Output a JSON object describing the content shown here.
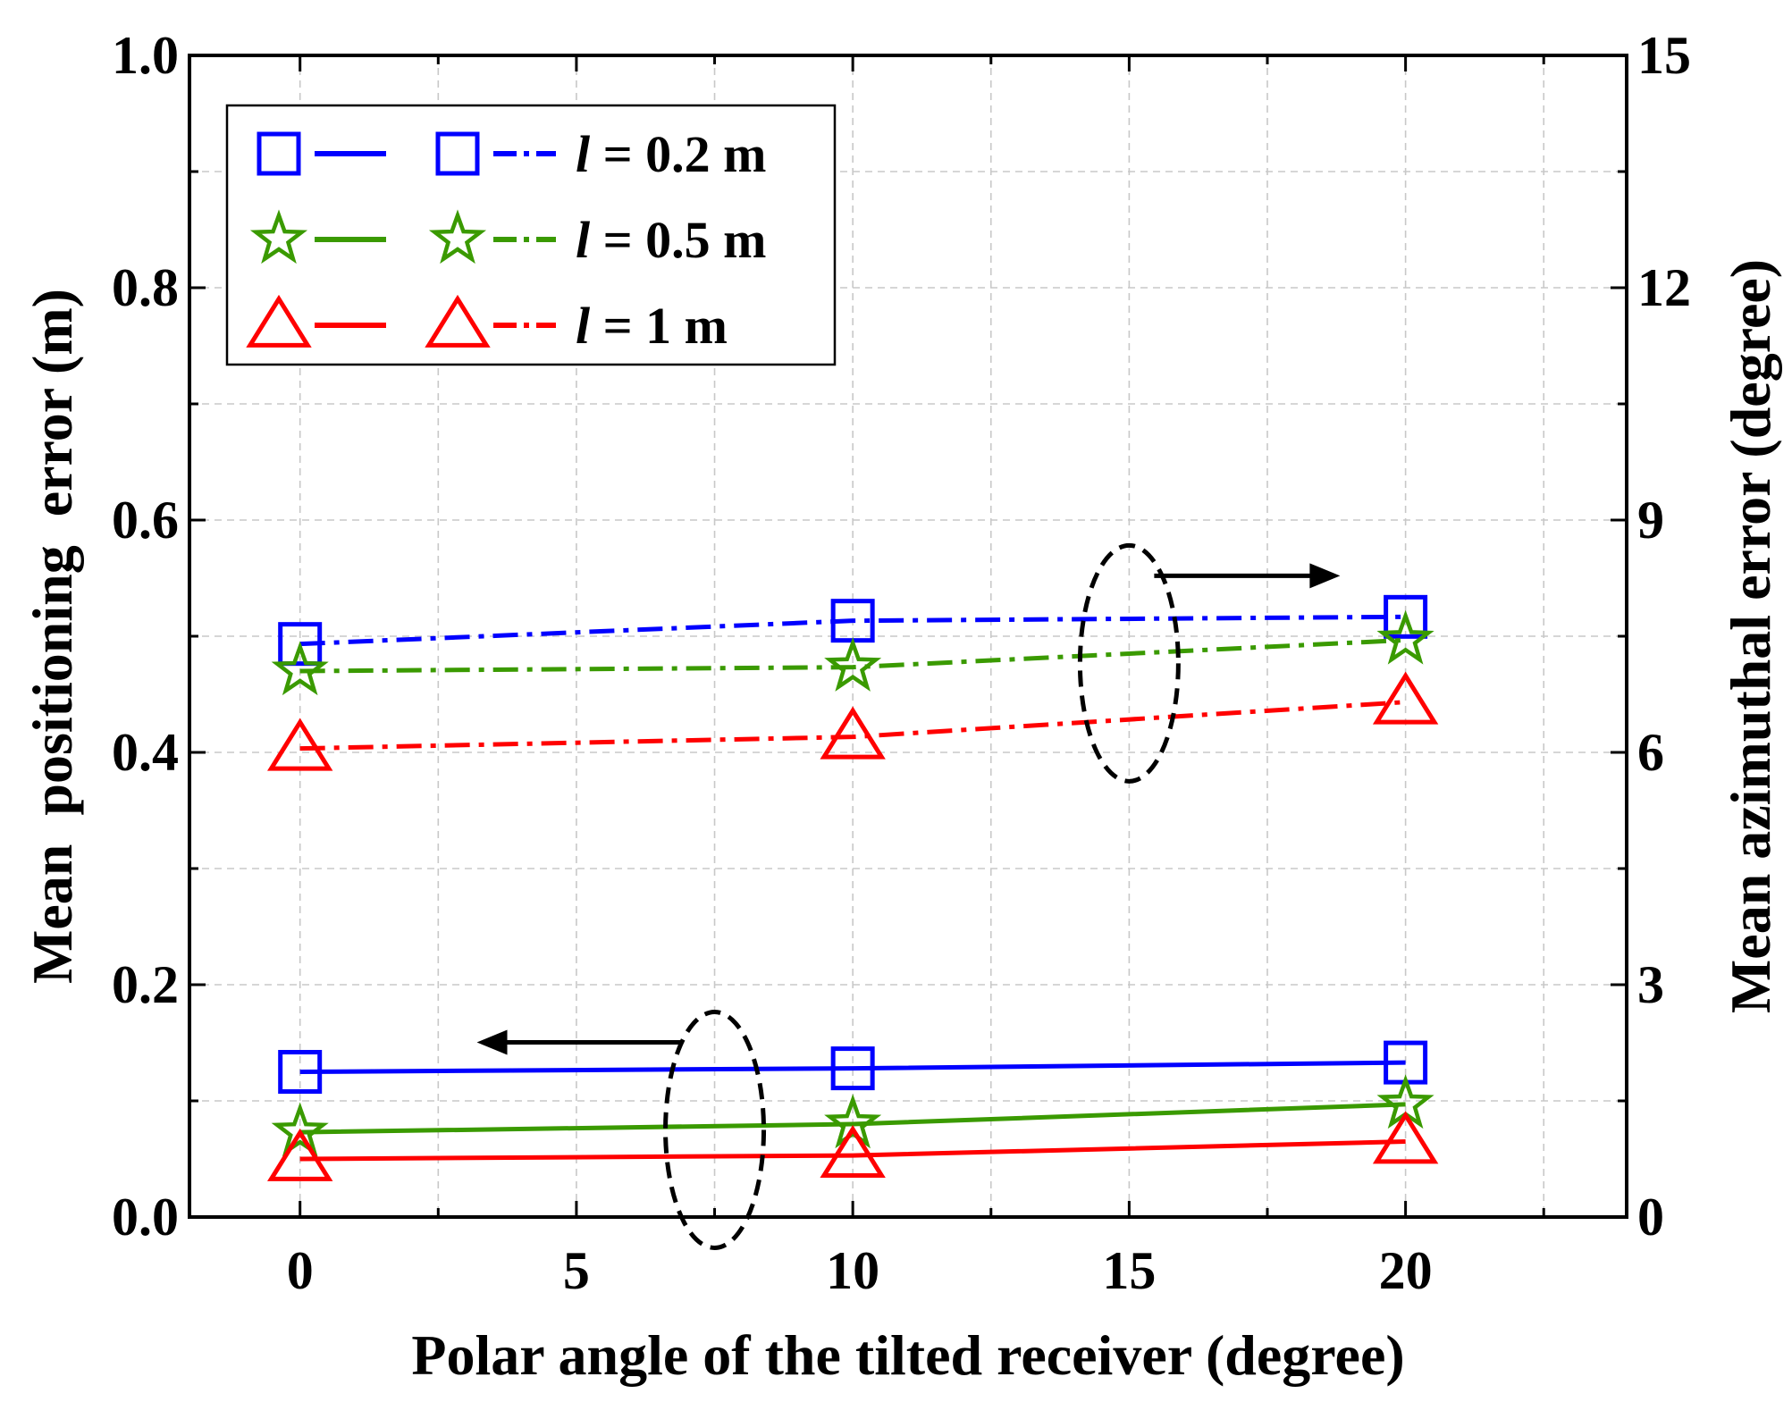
{
  "chart_data": {
    "type": "line",
    "xlabel": "Polar angle of the tilted receiver (degree)",
    "ylabel_left": "Mean  positioning  error (m)",
    "ylabel_right": "Mean azimuthal error (degree)",
    "xlim": [
      -2,
      24
    ],
    "ylim_left": [
      0.0,
      1.0
    ],
    "ylim_right": [
      0,
      15
    ],
    "x_ticks": [
      0,
      5,
      10,
      15,
      20
    ],
    "x_tick_labels": [
      "0",
      "5",
      "10",
      "15",
      "20"
    ],
    "y_left_ticks": [
      0.0,
      0.2,
      0.4,
      0.6,
      0.8,
      1.0
    ],
    "y_left_tick_labels": [
      "0.0",
      "0.2",
      "0.4",
      "0.6",
      "0.8",
      "1.0"
    ],
    "y_right_ticks": [
      0,
      3,
      6,
      9,
      12,
      15
    ],
    "y_right_tick_labels": [
      "0",
      "3",
      "6",
      "9",
      "12",
      "15"
    ],
    "grid": true,
    "legend_position": "top-left",
    "x": [
      0,
      10,
      20
    ],
    "series": [
      {
        "name": "l = 0.2 m (positioning)",
        "axis": "left",
        "style": "solid",
        "marker": "square",
        "color": "#0000ff",
        "values": [
          0.125,
          0.128,
          0.133
        ]
      },
      {
        "name": "l = 0.5 m (positioning)",
        "axis": "left",
        "style": "solid",
        "marker": "star",
        "color": "#3a9a00",
        "values": [
          0.073,
          0.08,
          0.097
        ]
      },
      {
        "name": "l = 1 m (positioning)",
        "axis": "left",
        "style": "solid",
        "marker": "triangle",
        "color": "#ff0000",
        "values": [
          0.05,
          0.053,
          0.065
        ]
      },
      {
        "name": "l = 0.2 m (azimuthal)",
        "axis": "right",
        "style": "dashdot",
        "marker": "square",
        "color": "#0000ff",
        "values": [
          7.4,
          7.7,
          7.75
        ]
      },
      {
        "name": "l = 0.5 m (azimuthal)",
        "axis": "right",
        "style": "dashdot",
        "marker": "star",
        "color": "#3a9a00",
        "values": [
          7.05,
          7.1,
          7.45
        ]
      },
      {
        "name": "l = 1 m (azimuthal)",
        "axis": "right",
        "style": "dashdot",
        "marker": "triangle",
        "color": "#ff0000",
        "values": [
          6.05,
          6.2,
          6.65
        ]
      }
    ],
    "legend": [
      {
        "var": "l",
        "text": " = 0.2 m",
        "marker": "square",
        "color": "#0000ff"
      },
      {
        "var": "l",
        "text": " = 0.5 m",
        "marker": "star",
        "color": "#3a9a00"
      },
      {
        "var": "l",
        "text": " = 1 m",
        "marker": "triangle",
        "color": "#ff0000"
      }
    ],
    "annotations": [
      {
        "type": "ellipse-with-arrow",
        "target_axis": "left",
        "arrow_direction": "left",
        "center": {
          "x": 7.5,
          "y": 0.075
        }
      },
      {
        "type": "ellipse-with-arrow",
        "target_axis": "right",
        "arrow_direction": "right",
        "center": {
          "x": 15,
          "y": 7.15
        }
      }
    ]
  }
}
